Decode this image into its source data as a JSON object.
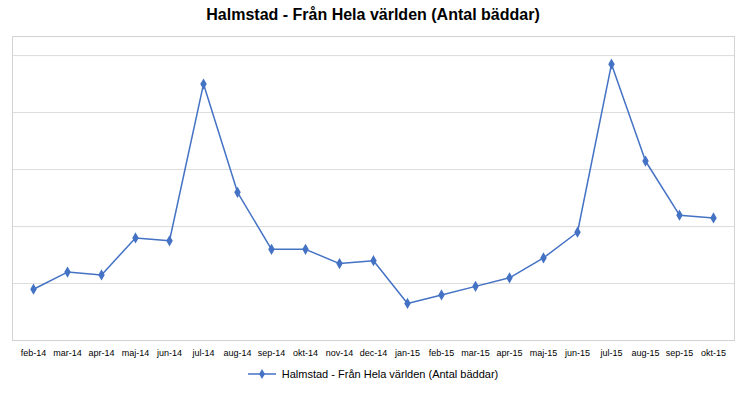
{
  "chart_data": {
    "type": "line",
    "title": "Halmstad - Från Hela världen (Antal bäddar)",
    "categories": [
      "feb-14",
      "mar-14",
      "apr-14",
      "maj-14",
      "jun-14",
      "jul-14",
      "aug-14",
      "sep-14",
      "okt-14",
      "nov-14",
      "dec-14",
      "jan-15",
      "feb-15",
      "mar-15",
      "apr-15",
      "maj-15",
      "jun-15",
      "jul-15",
      "aug-15",
      "sep-15",
      "okt-15"
    ],
    "series": [
      {
        "name": "Halmstad - Från Hela världen (Antal bäddar)",
        "color": "#4472C4",
        "marker": "diamond",
        "values": [
          18,
          24,
          23,
          36,
          35,
          90,
          52,
          32,
          32,
          27,
          28,
          13,
          16,
          19,
          22,
          29,
          38,
          97,
          63,
          44,
          43
        ]
      }
    ],
    "ylim": [
      0,
      106.7
    ],
    "yticks": [
      0,
      20,
      40,
      60,
      80,
      100
    ],
    "grid": true,
    "tick_labels": "x",
    "legend": "bottom"
  }
}
